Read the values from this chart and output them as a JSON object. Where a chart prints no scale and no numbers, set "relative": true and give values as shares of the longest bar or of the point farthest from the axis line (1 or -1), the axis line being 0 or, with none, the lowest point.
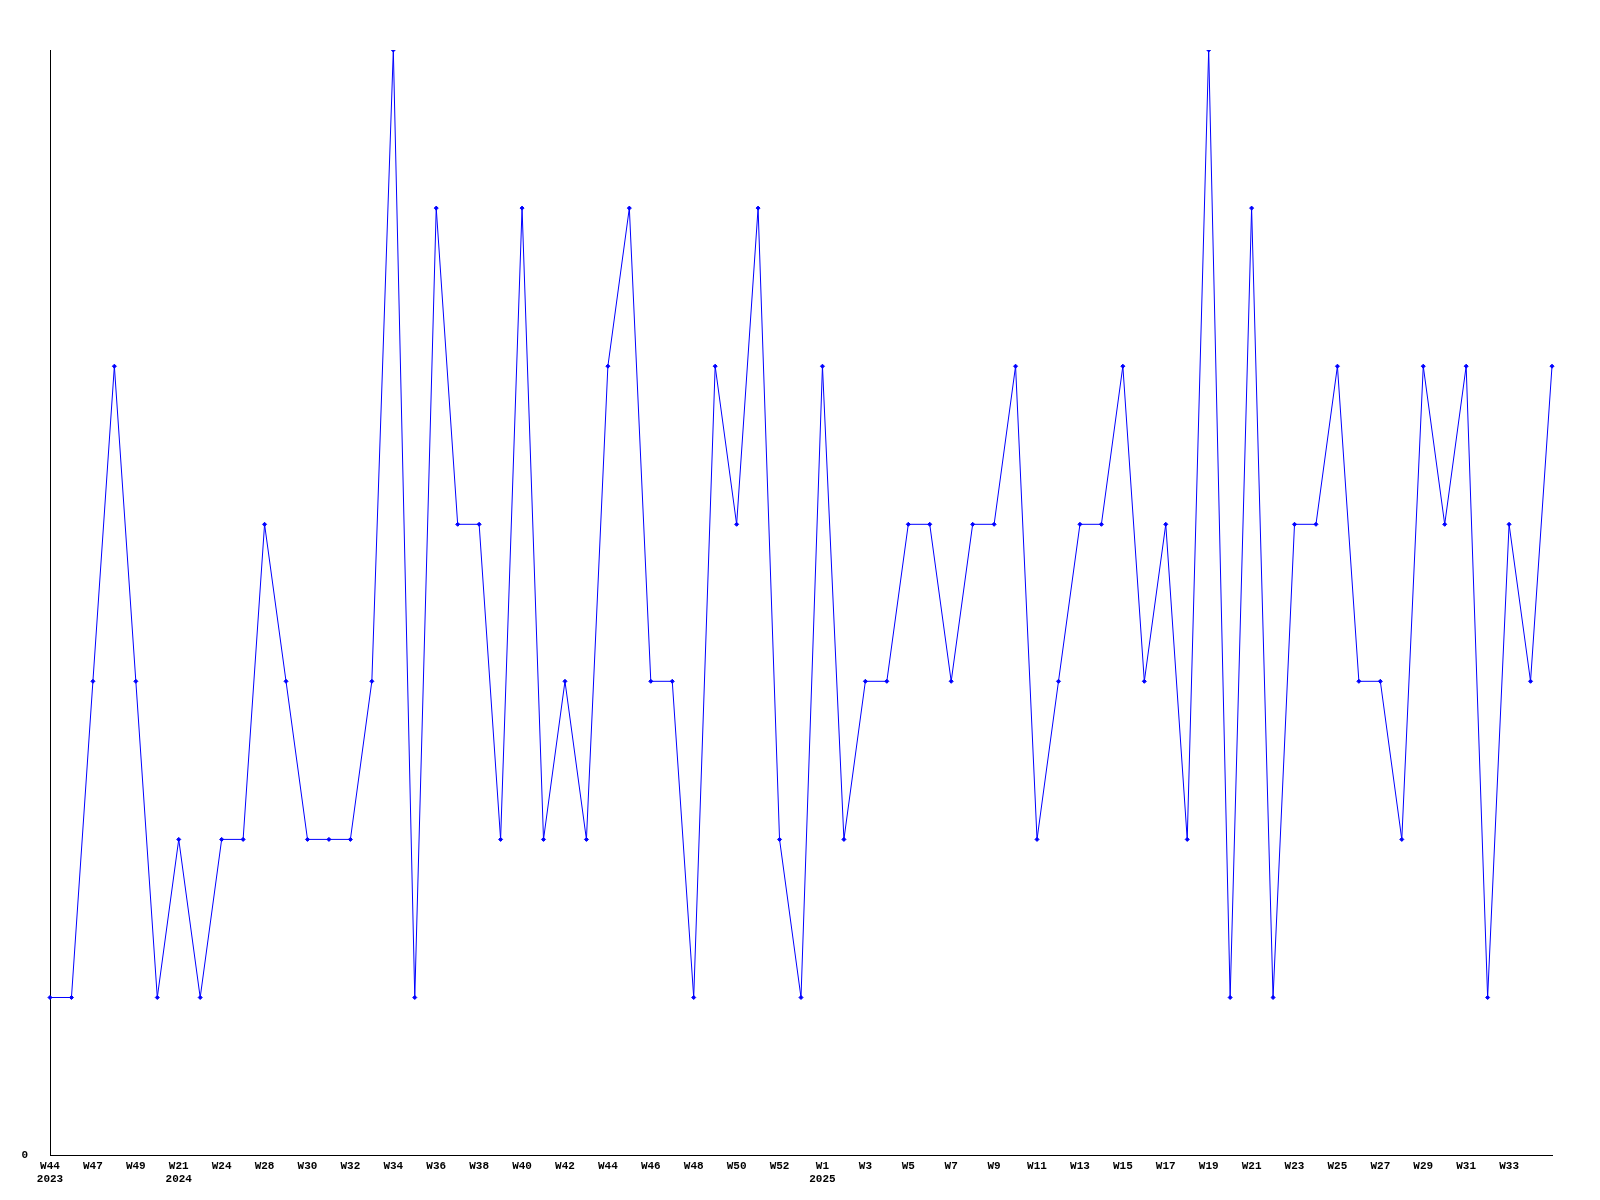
{
  "chart_data": {
    "type": "line",
    "relative": true,
    "color": "#0000ff",
    "marker": "diamond",
    "grid": false,
    "legend": false,
    "annotations": [
      "0"
    ],
    "categories": [
      "W44\n2023",
      null,
      "W47",
      null,
      "W49",
      null,
      "W21\n2024",
      null,
      "W24",
      null,
      "W28",
      null,
      "W30",
      null,
      "W32",
      null,
      "W34",
      null,
      "W36",
      null,
      "W38",
      null,
      "W40",
      null,
      "W42",
      null,
      "W44",
      null,
      "W46",
      null,
      "W48",
      null,
      "W50",
      null,
      "W52",
      null,
      "W1\n2025",
      null,
      "W3",
      null,
      "W5",
      null,
      "W7",
      null,
      "W9",
      null,
      "W11",
      null,
      "W13",
      null,
      "W15",
      null,
      "W17",
      null,
      "W19",
      null,
      "W21",
      null,
      "W23",
      null,
      "W25",
      null,
      "W27",
      null,
      "W29",
      null,
      "W31",
      null,
      "W33",
      null,
      null
    ],
    "values": [
      0.143,
      0.143,
      0.429,
      0.714,
      0.429,
      0.143,
      0.286,
      0.143,
      0.286,
      0.286,
      0.571,
      0.429,
      0.286,
      0.286,
      0.286,
      0.429,
      1,
      0.143,
      0.857,
      0.571,
      0.571,
      0.286,
      0.857,
      0.286,
      0.429,
      0.286,
      0.714,
      0.857,
      0.429,
      0.429,
      0.143,
      0.714,
      0.571,
      0.857,
      0.286,
      0.143,
      0.714,
      0.286,
      0.429,
      0.429,
      0.571,
      0.571,
      0.429,
      0.571,
      0.571,
      0.714,
      0.286,
      0.429,
      0.571,
      0.571,
      0.714,
      0.429,
      0.571,
      0.286,
      1,
      0.143,
      0.857,
      0.143,
      0.571,
      0.571,
      0.714,
      0.429,
      0.429,
      0.286,
      0.714,
      0.571,
      0.714,
      0.143,
      0.571,
      0.429,
      0.714
    ]
  }
}
